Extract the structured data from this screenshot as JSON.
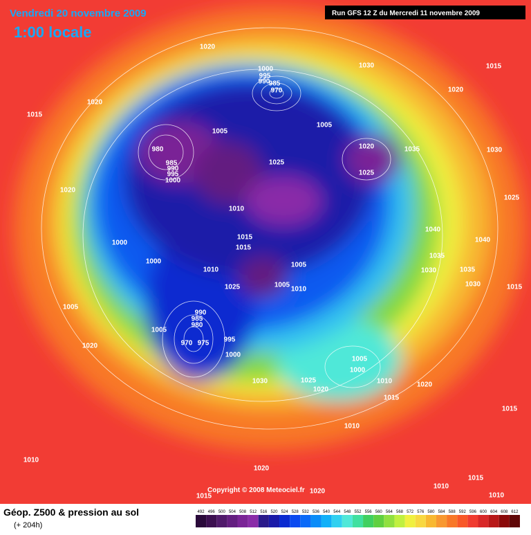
{
  "header": {
    "date": "Vendredi 20 novembre 2009",
    "time": "1:00 locale",
    "run": "Run GFS 12 Z du Mercredi 11 novembre 2009"
  },
  "copyright": "Copyright © 2008 Meteociel.fr",
  "footer": {
    "title": "Géop. Z500 & pression au sol",
    "lead": "(+ 204h)"
  },
  "scale": {
    "values": [
      492,
      496,
      500,
      504,
      508,
      512,
      516,
      520,
      524,
      528,
      532,
      536,
      540,
      544,
      548,
      552,
      556,
      560,
      564,
      568,
      572,
      576,
      580,
      584,
      588,
      592,
      596,
      600,
      604,
      608,
      612
    ],
    "colors": [
      "#2a0a3a",
      "#3c1050",
      "#501a6a",
      "#641e80",
      "#7a2496",
      "#8a2ca8",
      "#2a1a8a",
      "#1a1aa8",
      "#0a2ad0",
      "#0a4af0",
      "#0a6af8",
      "#0a8cf8",
      "#10b0f8",
      "#30d0f0",
      "#50e8d8",
      "#40e0a0",
      "#40d060",
      "#60d040",
      "#90e040",
      "#c0f040",
      "#f0f040",
      "#f8d840",
      "#f8b830",
      "#f89830",
      "#f87828",
      "#f85828",
      "#f03c30",
      "#d82828",
      "#b81818",
      "#8a0a0a",
      "#600808"
    ]
  },
  "pressure_labels": [
    1020,
    1030,
    1015,
    1000,
    995,
    990,
    985,
    970,
    1020,
    1020,
    1015,
    1005,
    1005,
    980,
    1020,
    1035,
    1030,
    985,
    990,
    995,
    1000,
    1025,
    1025,
    1020,
    1025,
    1010,
    1040,
    1015,
    1040,
    1000,
    1015,
    1035,
    1000,
    1005,
    1010,
    1035,
    1030,
    1030,
    1015,
    1025,
    1005,
    1010,
    990,
    985,
    980,
    1005,
    1005,
    970,
    975,
    995,
    1000,
    1020,
    1005,
    1000,
    1025,
    1010,
    1020,
    1030,
    1020,
    1015,
    1015,
    1010,
    1010,
    1020,
    1015,
    1015,
    1020,
    1010,
    1010
  ]
}
